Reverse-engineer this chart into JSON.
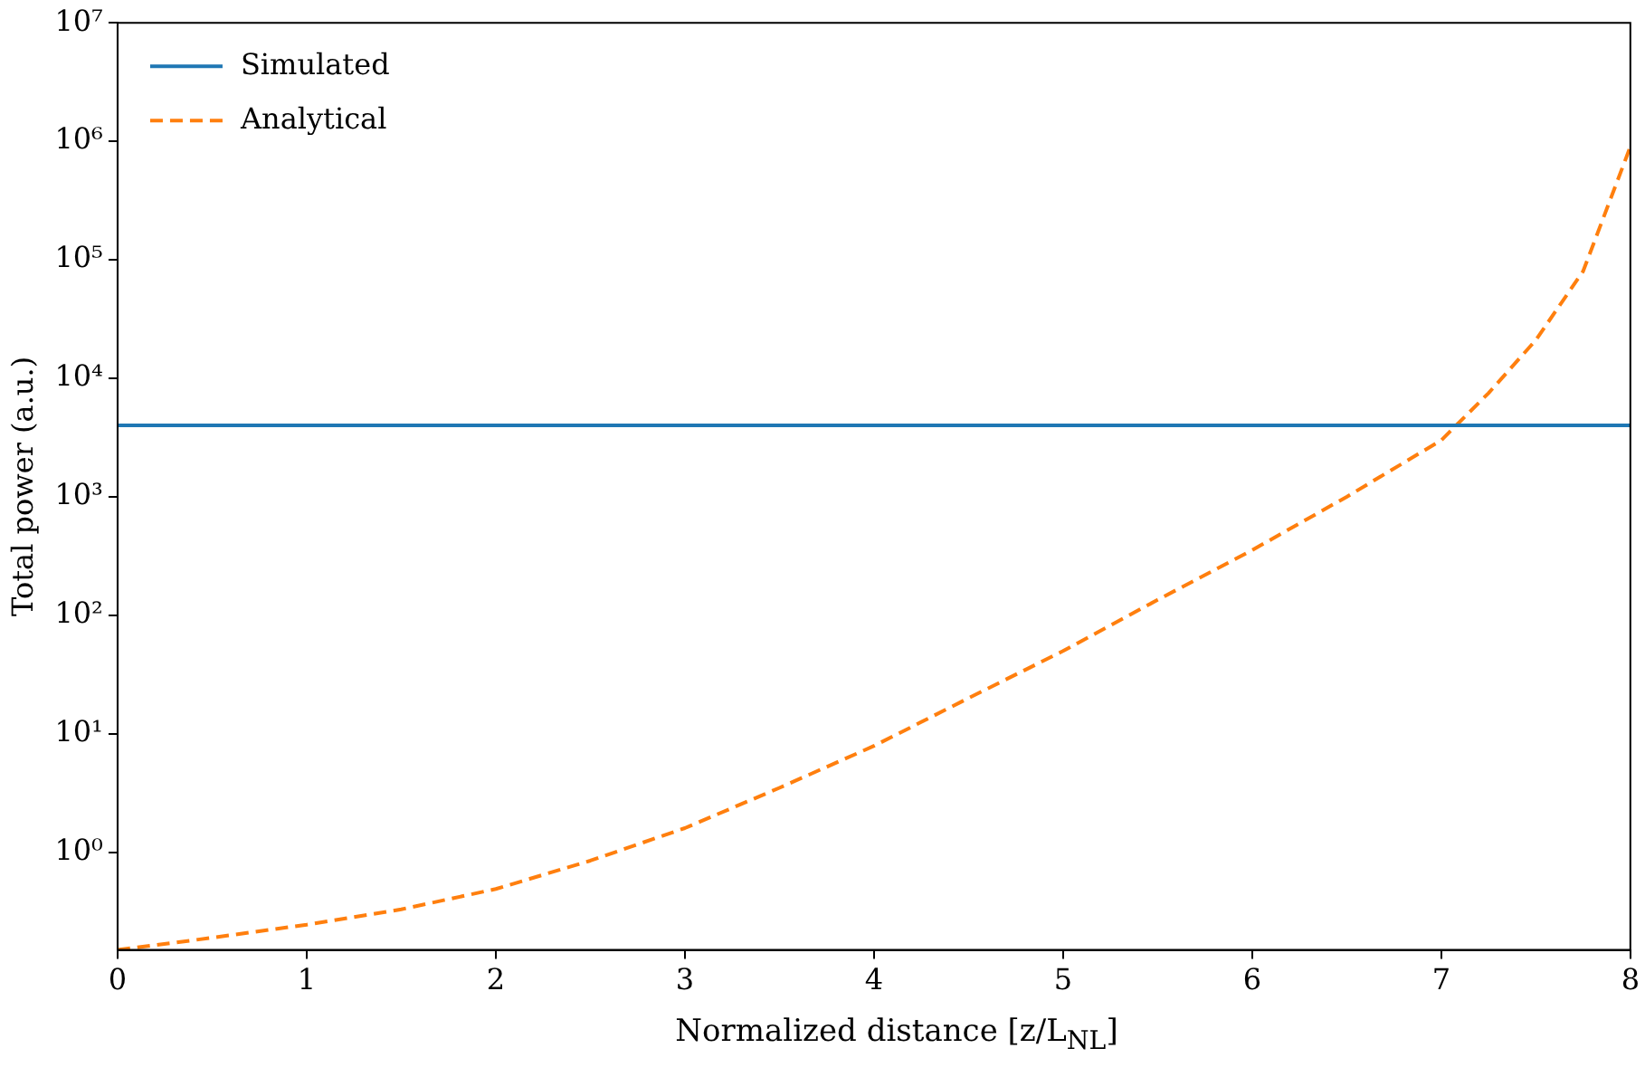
{
  "chart_data": {
    "type": "line",
    "xlabel": "Normalized distance [z/L$_{NL}$]",
    "ylabel": "Total power (a.u.)",
    "x": [
      0,
      0.5,
      1,
      1.5,
      2,
      2.5,
      3,
      3.5,
      4,
      4.5,
      5,
      5.5,
      6,
      6.5,
      7,
      7.25,
      7.5,
      7.75,
      8
    ],
    "series": [
      {
        "name": "Simulated",
        "color": "#1f77b4",
        "line_style": "solid",
        "x": [
          0,
          8
        ],
        "values": [
          4000,
          4000
        ]
      },
      {
        "name": "Analytical",
        "color": "#ff7f0e",
        "line_style": "dashed",
        "values": [
          0.15,
          0.19,
          0.245,
          0.33,
          0.49,
          0.85,
          1.6,
          3.5,
          7.9,
          20,
          50,
          135,
          355,
          1000,
          3000,
          7500,
          21000,
          80000,
          900000
        ]
      }
    ],
    "log": "y",
    "xlim": [
      0,
      8
    ],
    "xticks": [
      0,
      1,
      2,
      3,
      4,
      5,
      6,
      7,
      8
    ],
    "ylim": [
      0.15,
      10000000
    ],
    "yticks": [
      {
        "value": 1,
        "label": "10⁰"
      },
      {
        "value": 10,
        "label": "10¹"
      },
      {
        "value": 100,
        "label": "10²"
      },
      {
        "value": 1000,
        "label": "10³"
      },
      {
        "value": 10000,
        "label": "10⁴"
      },
      {
        "value": 100000,
        "label": "10⁵"
      },
      {
        "value": 1000000,
        "label": "10⁶"
      },
      {
        "value": 10000000,
        "label": "10⁷"
      }
    ],
    "grid": false,
    "legend": "top left",
    "marker": "none"
  }
}
